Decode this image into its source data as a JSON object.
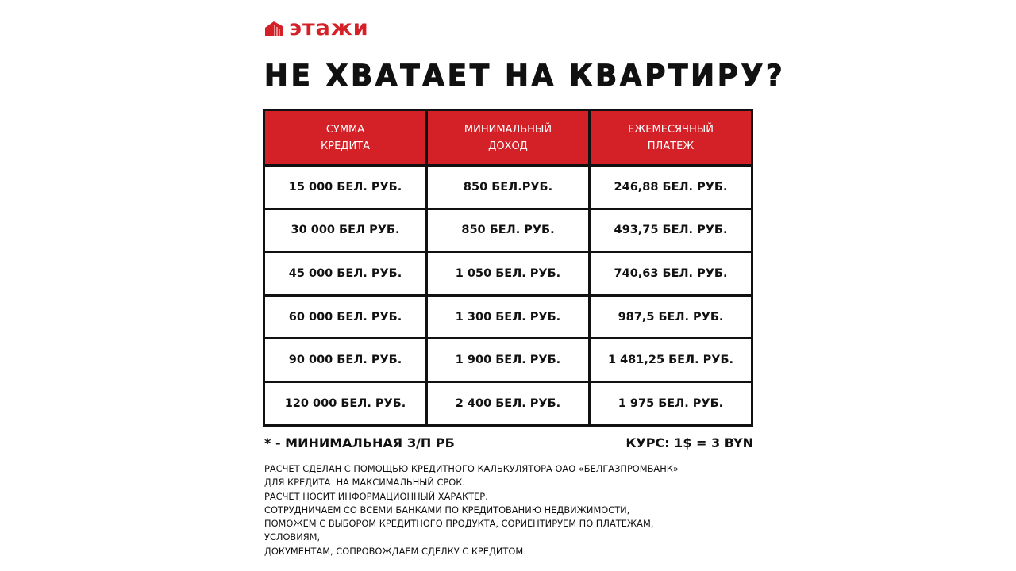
{
  "brand": {
    "name": "этажи",
    "color": "#d42027"
  },
  "title": "НЕ ХВАТАЕТ НА КВАРТИРУ?",
  "table": {
    "headers": [
      [
        "СУММА",
        "КРЕДИТА"
      ],
      [
        "МИНИМАЛЬНЫЙ",
        "ДОХОД"
      ],
      [
        "ЕЖЕМЕСЯЧНЫЙ",
        "ПЛАТЕЖ"
      ]
    ],
    "rows": [
      [
        "15 000 БЕЛ. РУБ.",
        "850 БЕЛ.РУБ.",
        "246,88 БЕЛ. РУБ."
      ],
      [
        "30 000 БЕЛ РУБ.",
        "850 БЕЛ. РУБ.",
        "493,75 БЕЛ. РУБ."
      ],
      [
        "45 000 БЕЛ. РУБ.",
        "1 050 БЕЛ. РУБ.",
        "740,63 БЕЛ. РУБ."
      ],
      [
        "60 000 БЕЛ. РУБ.",
        "1 300 БЕЛ. РУБ.",
        "987,5 БЕЛ. РУБ."
      ],
      [
        "90 000 БЕЛ. РУБ.",
        "1 900 БЕЛ. РУБ.",
        "1 481,25 БЕЛ. РУБ."
      ],
      [
        "120 000 БЕЛ. РУБ.",
        "2 400 БЕЛ. РУБ.",
        "1 975 БЕЛ. РУБ."
      ]
    ]
  },
  "note_left": "* - МИНИМАЛЬНАЯ З/П РБ",
  "note_right": "КУРС: 1$ = 3 BYN",
  "footer": [
    "РАСЧЕТ СДЕЛАН С ПОМОЩЬЮ КРЕДИТНОГО КАЛЬКУЛЯТОРА ОАО «БЕЛГАЗПРОМБАНК»",
    "ДЛЯ КРЕДИТА  НА МАКСИМАЛЬНЫЙ СРОК.",
    "РАСЧЕТ НОСИТ ИНФОРМАЦИОННЫЙ ХАРАКТЕР.",
    "СОТРУДНИЧАЕМ СО ВСЕМИ БАНКАМИ ПО КРЕДИТОВАНИЮ НЕДВИЖИМОСТИ,",
    "ПОМОЖЕМ С ВЫБОРОМ КРЕДИТНОГО ПРОДУКТА, СОРИЕНТИРУЕМ ПО ПЛАТЕЖАМ,",
    "УСЛОВИЯМ,",
    "ДОКУМЕНТАМ, СОПРОВОЖДАЕМ СДЕЛКУ С КРЕДИТОМ"
  ]
}
